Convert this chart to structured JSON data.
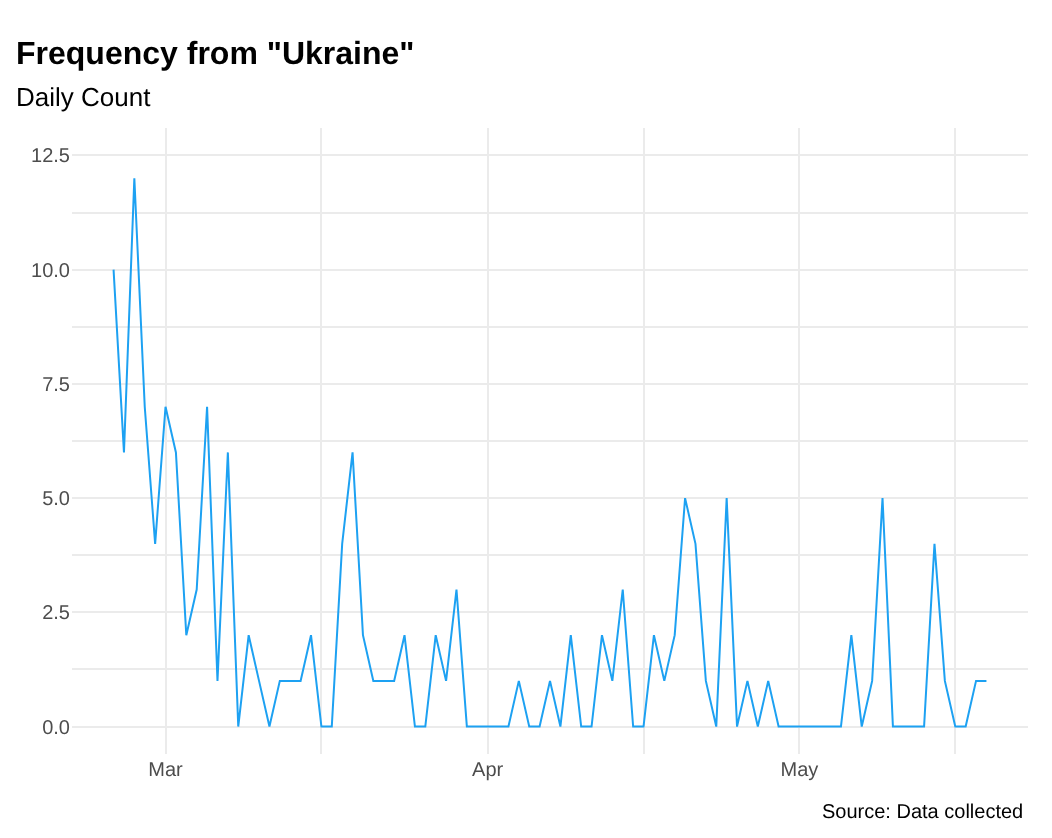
{
  "chart_data": {
    "type": "line",
    "title": "Frequency from \"Ukraine\"",
    "subtitle": "Daily Count",
    "annotations": [
      "Source: Data collected"
    ],
    "x": [
      "--02-24",
      "--02-25",
      "--02-26",
      "--02-27",
      "--02-28",
      "--03-01",
      "--03-02",
      "--03-03",
      "--03-04",
      "--03-05",
      "--03-06",
      "--03-07",
      "--03-08",
      "--03-09",
      "--03-10",
      "--03-11",
      "--03-12",
      "--03-13",
      "--03-14",
      "--03-15",
      "--03-16",
      "--03-17",
      "--03-18",
      "--03-19",
      "--03-20",
      "--03-21",
      "--03-22",
      "--03-23",
      "--03-24",
      "--03-25",
      "--03-26",
      "--03-27",
      "--03-28",
      "--03-29",
      "--03-30",
      "--03-31",
      "--04-01",
      "--04-02",
      "--04-03",
      "--04-04",
      "--04-05",
      "--04-06",
      "--04-07",
      "--04-08",
      "--04-09",
      "--04-10",
      "--04-11",
      "--04-12",
      "--04-13",
      "--04-14",
      "--04-15",
      "--04-16",
      "--04-17",
      "--04-18",
      "--04-19",
      "--04-20",
      "--04-21",
      "--04-22",
      "--04-23",
      "--04-24",
      "--04-25",
      "--04-26",
      "--04-27",
      "--04-28",
      "--04-29",
      "--04-30",
      "--05-01",
      "--05-02",
      "--05-03",
      "--05-04",
      "--05-05",
      "--05-06",
      "--05-07",
      "--05-08",
      "--05-09",
      "--05-10",
      "--05-11",
      "--05-12",
      "--05-13",
      "--05-14",
      "--05-15",
      "--05-16",
      "--05-17",
      "--05-18",
      "--05-19"
    ],
    "series": [
      {
        "color": "#1da1f2",
        "values": [
          10,
          6,
          12,
          7,
          4,
          7,
          6,
          2,
          3,
          7,
          1,
          6,
          0,
          2,
          1,
          0,
          1,
          1,
          1,
          2,
          0,
          0,
          4,
          6,
          2,
          1,
          1,
          1,
          2,
          0,
          0,
          2,
          1,
          3,
          0,
          0,
          0,
          0,
          0,
          1,
          0,
          0,
          1,
          0,
          2,
          0,
          0,
          2,
          1,
          3,
          0,
          0,
          2,
          1,
          2,
          5,
          4,
          1,
          0,
          5,
          0,
          1,
          0,
          1,
          0,
          0,
          0,
          0,
          0,
          0,
          0,
          2,
          0,
          1,
          5,
          0,
          0,
          0,
          0,
          4,
          1,
          0,
          0,
          1,
          1
        ]
      }
    ],
    "xlim": [
      "--02-20",
      "--05-23"
    ],
    "xticks": [
      {
        "value": "--03-01",
        "label": "Mar"
      },
      {
        "value": "--04-01",
        "label": "Apr"
      },
      {
        "value": "--05-01",
        "label": "May"
      },
      {
        "value": "--03-16",
        "label": null
      },
      {
        "value": "--04-16",
        "label": null
      },
      {
        "value": "--05-16",
        "label": null
      }
    ],
    "ylim": [
      -0.6,
      13.1
    ],
    "yticks": [
      {
        "value": 0,
        "label": "0.0"
      },
      {
        "value": 2.5,
        "label": "2.5"
      },
      {
        "value": 5,
        "label": "5.0"
      },
      {
        "value": 7.5,
        "label": "7.5"
      },
      {
        "value": 10,
        "label": "10.0"
      },
      {
        "value": 12.5,
        "label": "12.5"
      },
      {
        "value": 1.25,
        "label": null
      },
      {
        "value": 3.75,
        "label": null
      },
      {
        "value": 6.25,
        "label": null
      },
      {
        "value": 8.75,
        "label": null
      },
      {
        "value": 11.25,
        "label": null
      }
    ],
    "grid": true,
    "marker": "none",
    "line_style": "solid"
  }
}
